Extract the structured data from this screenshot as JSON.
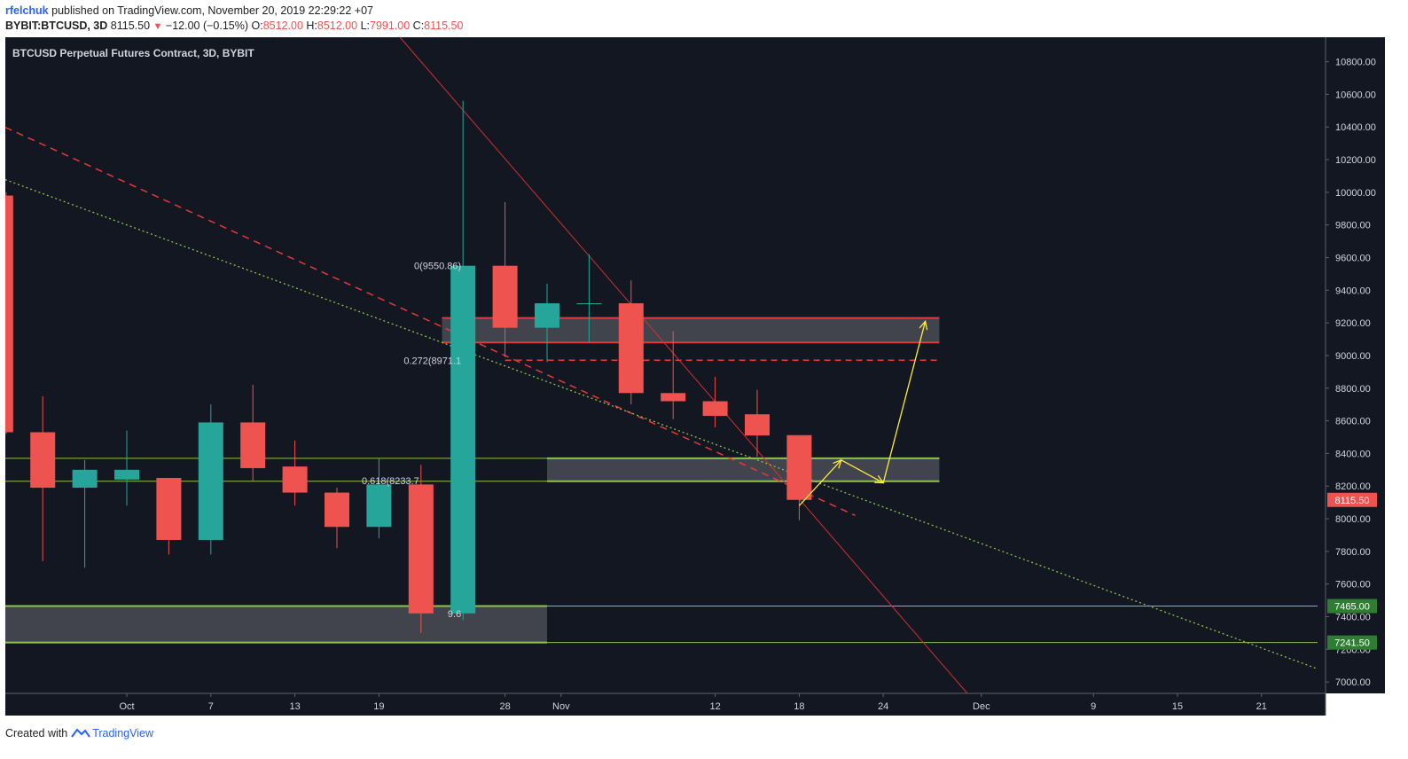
{
  "header": {
    "user": "rfelchuk",
    "published_text": "published on TradingView.com, November 20, 2019 22:29:22 +07",
    "symbol": "BYBIT:BTCUSD, 3D",
    "last": "8115.50",
    "change_arrow": "▼",
    "change": "−12.00 (−0.15%)",
    "o_label": "O:",
    "o_value": "8512.00",
    "h_label": "H:",
    "h_value": "8512.00",
    "l_label": "L:",
    "l_value": "7991.00",
    "c_label": "C:",
    "c_value": "8115.50"
  },
  "footer": {
    "created_with": "Created with",
    "brand": "TradingView",
    "brand_icon": "tradingview-logo-icon"
  },
  "colors": {
    "background": "#131722",
    "up": "#26a69a",
    "down": "#ef5350",
    "zone": "#4a4c55",
    "support_line": "#8bc34a",
    "resistance_line": "#e53935",
    "arrow": "#ffeb3b",
    "axis_text": "#d1d4dc",
    "green_badge": "#2e7d32",
    "red_badge": "#ef5350"
  },
  "chart_data": {
    "type": "candlestick",
    "title": "BTCUSD Perpetual Futures Contract, 3D, BYBIT",
    "ylim": [
      6930,
      10950
    ],
    "y_ticks": [
      7000,
      7200,
      7400,
      7600,
      7800,
      8000,
      8200,
      8400,
      8600,
      8800,
      9000,
      9200,
      9400,
      9600,
      9800,
      10000,
      10200,
      10400,
      10600,
      10800
    ],
    "y_tick_labels": [
      "7000.00",
      "7200.00",
      "7400.00",
      "7600.00",
      "7800.00",
      "8000.00",
      "8200.00",
      "8400.00",
      "8600.00",
      "8800.00",
      "9000.00",
      "9200.00",
      "9400.00",
      "9600.00",
      "9800.00",
      "10000.00",
      "10200.00",
      "10400.00",
      "10600.00",
      "10800.00"
    ],
    "x_ticks": [
      {
        "label": "Oct",
        "day": 0
      },
      {
        "label": "7",
        "day": 6
      },
      {
        "label": "13",
        "day": 12
      },
      {
        "label": "19",
        "day": 18
      },
      {
        "label": "28",
        "day": 27
      },
      {
        "label": "Nov",
        "day": 31
      },
      {
        "label": "12",
        "day": 42
      },
      {
        "label": "18",
        "day": 48
      },
      {
        "label": "24",
        "day": 54
      },
      {
        "label": "Dec",
        "day": 61
      },
      {
        "label": "9",
        "day": 69
      },
      {
        "label": "15",
        "day": 75
      },
      {
        "label": "21",
        "day": 81
      }
    ],
    "candles": [
      {
        "day": -9,
        "open": 9980,
        "high": 10000,
        "close": 8530,
        "low": 8520
      },
      {
        "day": -6,
        "open": 8530,
        "high": 8750,
        "close": 8190,
        "low": 7740
      },
      {
        "day": -3,
        "open": 8190,
        "high": 8360,
        "close": 8300,
        "low": 7700
      },
      {
        "day": 0,
        "open": 8240,
        "high": 8540,
        "close": 8300,
        "low": 8080
      },
      {
        "day": 3,
        "open": 8250,
        "high": 8250,
        "close": 7870,
        "low": 7780
      },
      {
        "day": 6,
        "open": 7870,
        "high": 8700,
        "close": 8590,
        "low": 7780
      },
      {
        "day": 9,
        "open": 8590,
        "high": 8820,
        "close": 8310,
        "low": 8230
      },
      {
        "day": 12,
        "open": 8320,
        "high": 8480,
        "close": 8160,
        "low": 8080
      },
      {
        "day": 15,
        "open": 8160,
        "high": 8190,
        "close": 7950,
        "low": 7820
      },
      {
        "day": 18,
        "open": 7950,
        "high": 8370,
        "close": 8210,
        "low": 7880
      },
      {
        "day": 21,
        "open": 8210,
        "high": 8330,
        "close": 7420,
        "low": 7300
      },
      {
        "day": 24,
        "open": 7420,
        "high": 10560,
        "close": 9550,
        "low": 7380
      },
      {
        "day": 27,
        "open": 9550,
        "high": 9940,
        "close": 9170,
        "low": 8990
      },
      {
        "day": 30,
        "open": 9170,
        "high": 9440,
        "close": 9320,
        "low": 8960
      },
      {
        "day": 33,
        "open": 9320,
        "high": 9620,
        "close": 9320,
        "low": 9080
      },
      {
        "day": 36,
        "open": 9320,
        "high": 9460,
        "close": 8770,
        "low": 8700
      },
      {
        "day": 39,
        "open": 8770,
        "high": 9150,
        "close": 8720,
        "low": 8610
      },
      {
        "day": 42,
        "open": 8720,
        "high": 8870,
        "close": 8630,
        "low": 8560
      },
      {
        "day": 45,
        "open": 8640,
        "high": 8790,
        "close": 8510,
        "low": 8380
      },
      {
        "day": 48,
        "open": 8512,
        "high": 8512,
        "close": 8115.5,
        "low": 7991
      }
    ],
    "zones": [
      {
        "from_day": 22.5,
        "to_day": 58,
        "low": 9080,
        "high": 9230,
        "border": "resistance"
      },
      {
        "from_day": 30,
        "to_day": 58,
        "low": 8230,
        "high": 8370,
        "border": "support"
      },
      {
        "from_day": -10,
        "to_day": 30,
        "low": 7241.5,
        "high": 7465,
        "border": "support"
      }
    ],
    "horizontal_lines": [
      {
        "price": 8370,
        "from_day": -10,
        "to_day": 58,
        "style": "support"
      },
      {
        "price": 8230,
        "from_day": -10,
        "to_day": 58,
        "style": "support"
      },
      {
        "price": 7465,
        "from_day": -10,
        "to_day": 85,
        "style": "support"
      },
      {
        "price": 7241.5,
        "from_day": -10,
        "to_day": 85,
        "style": "support"
      },
      {
        "price": 8971.1,
        "from_day": 27,
        "to_day": 58,
        "style": "dashed-red"
      }
    ],
    "trendlines": [
      {
        "name": "red-solid-trendline",
        "from": {
          "day": 19.5,
          "price": 10950
        },
        "to": {
          "day": 60,
          "price": 6930
        },
        "style": "solid-red"
      },
      {
        "name": "red-dashed-trendline",
        "from": {
          "day": -10,
          "price": 10450
        },
        "to": {
          "day": 52,
          "price": 8020
        },
        "style": "dashed-red"
      },
      {
        "name": "green-dotted-trendline",
        "from": {
          "day": -10,
          "price": 10120
        },
        "to": {
          "day": 85,
          "price": 7080
        },
        "style": "dotted-green"
      }
    ],
    "projection_path": [
      {
        "day": 48,
        "price": 8080
      },
      {
        "day": 51,
        "price": 8360
      },
      {
        "day": 54,
        "price": 8220
      },
      {
        "day": 57,
        "price": 9210
      }
    ],
    "fib_labels": [
      {
        "text": "0(9550.86)",
        "day": 24,
        "price": 9550.86
      },
      {
        "text": "0.272(8971.1",
        "day": 24,
        "price": 8971.1
      },
      {
        "text": "0.618(8233.7",
        "day": 21,
        "price": 8233.7
      },
      {
        "text": "9.6",
        "day": 24,
        "price": 7420
      }
    ],
    "price_badges": [
      {
        "label": "8115.50",
        "price": 8115.5,
        "color": "red"
      },
      {
        "label": "7465.00",
        "price": 7465,
        "color": "green"
      },
      {
        "label": "7241.50",
        "price": 7241.5,
        "color": "green"
      }
    ]
  }
}
